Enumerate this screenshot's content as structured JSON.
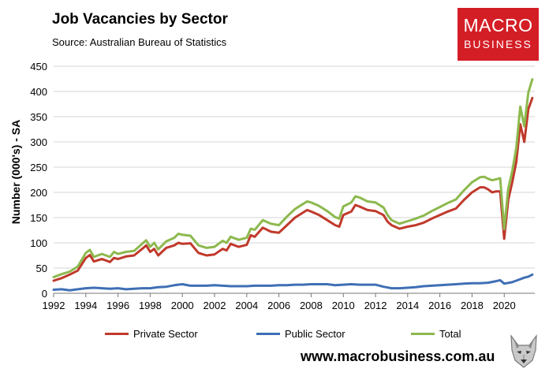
{
  "header": {
    "title": "Job Vacancies by Sector",
    "subtitle": "Source: Australian Bureau of Statistics"
  },
  "logo": {
    "line1": "MACRO",
    "line2": "BUSINESS",
    "color": "#d41e26"
  },
  "footer": {
    "website": "www.macrobusiness.com.au"
  },
  "chart_data": {
    "type": "line",
    "title": "Job Vacancies by Sector",
    "xlabel": "",
    "ylabel": "Number (000's) - SA",
    "xlim": [
      1992,
      2021.9
    ],
    "ylim": [
      0,
      450
    ],
    "yticks": [
      0,
      50,
      100,
      150,
      200,
      250,
      300,
      350,
      400,
      450
    ],
    "xticks": [
      1992,
      1994,
      1996,
      1998,
      2000,
      2002,
      2004,
      2006,
      2008,
      2010,
      2012,
      2014,
      2016,
      2018,
      2020
    ],
    "grid": "horizontal",
    "legend_position": "bottom",
    "series": [
      {
        "name": "Private Sector",
        "color": "#c0392b",
        "points": [
          [
            1992,
            25
          ],
          [
            1992.5,
            30
          ],
          [
            1993,
            37
          ],
          [
            1993.5,
            45
          ],
          [
            1994,
            70
          ],
          [
            1994.25,
            76
          ],
          [
            1994.5,
            63
          ],
          [
            1995,
            68
          ],
          [
            1995.5,
            62
          ],
          [
            1995.75,
            70
          ],
          [
            1996,
            68
          ],
          [
            1996.5,
            73
          ],
          [
            1997,
            75
          ],
          [
            1997.5,
            88
          ],
          [
            1997.75,
            95
          ],
          [
            1998,
            82
          ],
          [
            1998.25,
            88
          ],
          [
            1998.5,
            75
          ],
          [
            1999,
            90
          ],
          [
            1999.5,
            95
          ],
          [
            1999.75,
            100
          ],
          [
            2000,
            98
          ],
          [
            2000.5,
            99
          ],
          [
            2001,
            80
          ],
          [
            2001.5,
            75
          ],
          [
            2002,
            77
          ],
          [
            2002.5,
            88
          ],
          [
            2002.75,
            85
          ],
          [
            2003,
            98
          ],
          [
            2003.5,
            92
          ],
          [
            2004,
            96
          ],
          [
            2004.25,
            115
          ],
          [
            2004.5,
            112
          ],
          [
            2005,
            130
          ],
          [
            2005.5,
            122
          ],
          [
            2006,
            120
          ],
          [
            2006.5,
            135
          ],
          [
            2007,
            150
          ],
          [
            2007.5,
            160
          ],
          [
            2007.75,
            165
          ],
          [
            2008,
            162
          ],
          [
            2008.5,
            155
          ],
          [
            2009,
            145
          ],
          [
            2009.5,
            135
          ],
          [
            2009.75,
            132
          ],
          [
            2010,
            155
          ],
          [
            2010.5,
            162
          ],
          [
            2010.75,
            175
          ],
          [
            2011,
            172
          ],
          [
            2011.5,
            165
          ],
          [
            2012,
            163
          ],
          [
            2012.5,
            155
          ],
          [
            2012.75,
            142
          ],
          [
            2013,
            135
          ],
          [
            2013.5,
            128
          ],
          [
            2014,
            132
          ],
          [
            2014.5,
            135
          ],
          [
            2015,
            140
          ],
          [
            2015.5,
            148
          ],
          [
            2016,
            155
          ],
          [
            2016.5,
            162
          ],
          [
            2017,
            168
          ],
          [
            2017.5,
            185
          ],
          [
            2018,
            200
          ],
          [
            2018.5,
            210
          ],
          [
            2018.75,
            210
          ],
          [
            2019,
            206
          ],
          [
            2019.25,
            200
          ],
          [
            2019.5,
            202
          ],
          [
            2019.75,
            202
          ],
          [
            2020,
            108
          ],
          [
            2020.25,
            185
          ],
          [
            2020.5,
            220
          ],
          [
            2020.75,
            260
          ],
          [
            2021,
            335
          ],
          [
            2021.25,
            300
          ],
          [
            2021.5,
            365
          ],
          [
            2021.75,
            387
          ]
        ]
      },
      {
        "name": "Public Sector",
        "color": "#3f6fb5",
        "points": [
          [
            1992,
            7
          ],
          [
            1992.5,
            8
          ],
          [
            1993,
            6
          ],
          [
            1993.5,
            8
          ],
          [
            1994,
            10
          ],
          [
            1994.5,
            11
          ],
          [
            1995,
            10
          ],
          [
            1995.5,
            9
          ],
          [
            1996,
            10
          ],
          [
            1996.5,
            8
          ],
          [
            1997,
            9
          ],
          [
            1997.5,
            10
          ],
          [
            1998,
            10
          ],
          [
            1998.5,
            12
          ],
          [
            1999,
            13
          ],
          [
            1999.5,
            16
          ],
          [
            2000,
            18
          ],
          [
            2000.5,
            15
          ],
          [
            2001,
            15
          ],
          [
            2001.5,
            15
          ],
          [
            2002,
            16
          ],
          [
            2002.5,
            15
          ],
          [
            2003,
            14
          ],
          [
            2003.5,
            14
          ],
          [
            2004,
            14
          ],
          [
            2004.5,
            15
          ],
          [
            2005,
            15
          ],
          [
            2005.5,
            15
          ],
          [
            2006,
            16
          ],
          [
            2006.5,
            16
          ],
          [
            2007,
            17
          ],
          [
            2007.5,
            17
          ],
          [
            2008,
            18
          ],
          [
            2008.5,
            18
          ],
          [
            2009,
            18
          ],
          [
            2009.5,
            16
          ],
          [
            2010,
            17
          ],
          [
            2010.5,
            18
          ],
          [
            2011,
            17
          ],
          [
            2011.5,
            17
          ],
          [
            2012,
            17
          ],
          [
            2012.5,
            13
          ],
          [
            2013,
            10
          ],
          [
            2013.5,
            10
          ],
          [
            2014,
            11
          ],
          [
            2014.5,
            12
          ],
          [
            2015,
            14
          ],
          [
            2015.5,
            15
          ],
          [
            2016,
            16
          ],
          [
            2016.5,
            17
          ],
          [
            2017,
            18
          ],
          [
            2017.5,
            19
          ],
          [
            2018,
            20
          ],
          [
            2018.5,
            20
          ],
          [
            2019,
            21
          ],
          [
            2019.5,
            24
          ],
          [
            2019.75,
            26
          ],
          [
            2020,
            19
          ],
          [
            2020.5,
            22
          ],
          [
            2021,
            28
          ],
          [
            2021.25,
            31
          ],
          [
            2021.5,
            33
          ],
          [
            2021.75,
            37
          ]
        ]
      },
      {
        "name": "Total",
        "color": "#8db94e",
        "points": [
          [
            1992,
            32
          ],
          [
            1992.5,
            38
          ],
          [
            1993,
            43
          ],
          [
            1993.5,
            53
          ],
          [
            1994,
            80
          ],
          [
            1994.25,
            86
          ],
          [
            1994.5,
            72
          ],
          [
            1995,
            78
          ],
          [
            1995.5,
            72
          ],
          [
            1995.75,
            82
          ],
          [
            1996,
            78
          ],
          [
            1996.5,
            82
          ],
          [
            1997,
            84
          ],
          [
            1997.5,
            98
          ],
          [
            1997.75,
            105
          ],
          [
            1998,
            92
          ],
          [
            1998.25,
            100
          ],
          [
            1998.5,
            87
          ],
          [
            1999,
            103
          ],
          [
            1999.5,
            110
          ],
          [
            1999.75,
            118
          ],
          [
            2000,
            116
          ],
          [
            2000.5,
            114
          ],
          [
            2001,
            95
          ],
          [
            2001.5,
            90
          ],
          [
            2002,
            92
          ],
          [
            2002.5,
            104
          ],
          [
            2002.75,
            100
          ],
          [
            2003,
            112
          ],
          [
            2003.5,
            106
          ],
          [
            2004,
            110
          ],
          [
            2004.25,
            128
          ],
          [
            2004.5,
            126
          ],
          [
            2005,
            145
          ],
          [
            2005.5,
            138
          ],
          [
            2006,
            135
          ],
          [
            2006.5,
            152
          ],
          [
            2007,
            167
          ],
          [
            2007.5,
            177
          ],
          [
            2007.75,
            182
          ],
          [
            2008,
            180
          ],
          [
            2008.5,
            173
          ],
          [
            2009,
            163
          ],
          [
            2009.5,
            151
          ],
          [
            2009.75,
            148
          ],
          [
            2010,
            172
          ],
          [
            2010.5,
            180
          ],
          [
            2010.75,
            192
          ],
          [
            2011,
            190
          ],
          [
            2011.5,
            182
          ],
          [
            2012,
            180
          ],
          [
            2012.5,
            170
          ],
          [
            2012.75,
            155
          ],
          [
            2013,
            145
          ],
          [
            2013.5,
            138
          ],
          [
            2014,
            143
          ],
          [
            2014.5,
            148
          ],
          [
            2015,
            154
          ],
          [
            2015.5,
            163
          ],
          [
            2016,
            171
          ],
          [
            2016.5,
            179
          ],
          [
            2017,
            186
          ],
          [
            2017.5,
            204
          ],
          [
            2018,
            220
          ],
          [
            2018.5,
            230
          ],
          [
            2018.75,
            231
          ],
          [
            2019,
            227
          ],
          [
            2019.25,
            224
          ],
          [
            2019.5,
            226
          ],
          [
            2019.75,
            228
          ],
          [
            2020,
            127
          ],
          [
            2020.25,
            207
          ],
          [
            2020.5,
            242
          ],
          [
            2020.75,
            288
          ],
          [
            2021,
            370
          ],
          [
            2021.25,
            331
          ],
          [
            2021.5,
            398
          ],
          [
            2021.75,
            424
          ]
        ]
      }
    ]
  }
}
